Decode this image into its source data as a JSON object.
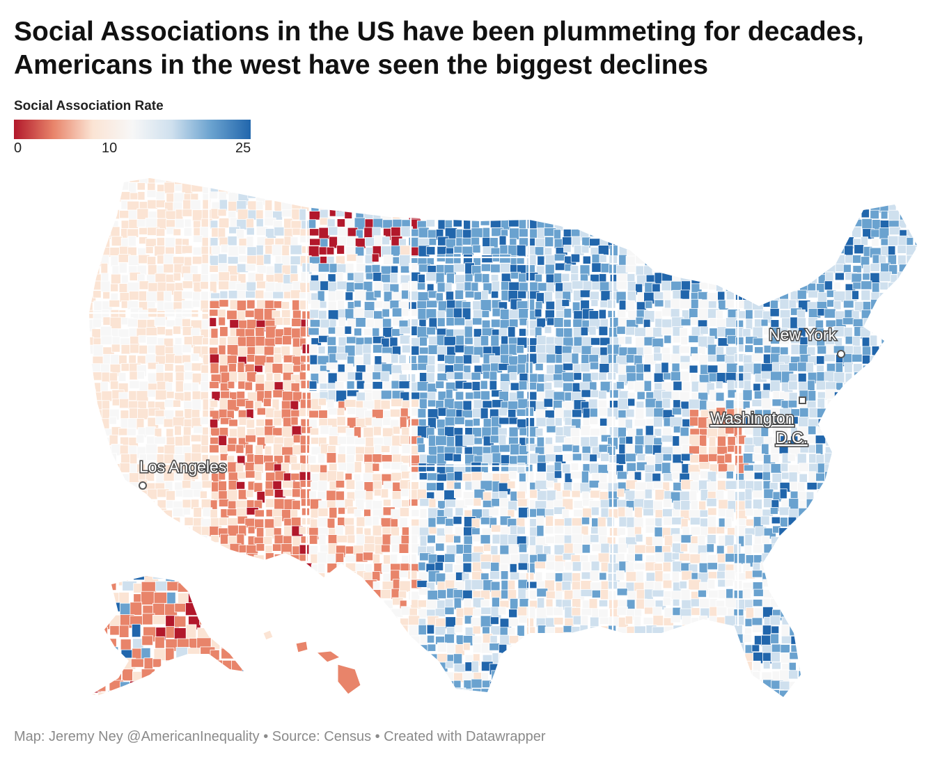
{
  "title_line1": "Social Associations in the US have been plummeting for decades,",
  "title_line2": "Americans in the west have seen the biggest declines",
  "legend": {
    "title": "Social Association Rate",
    "ticks": [
      "0",
      "10",
      "25"
    ],
    "min": 0,
    "mid": 10,
    "max": 25,
    "colors": [
      "#b2182b",
      "#e8846a",
      "#fbe4d4",
      "#f7f7f7",
      "#cfe0ee",
      "#6aa2cf",
      "#2166ac"
    ]
  },
  "cities": {
    "new_york": "New York",
    "washington_line1": "Washington",
    "washington_line2": "D.C.",
    "los_angeles": "Los Angeles"
  },
  "footer": "Map: Jeremy Ney @AmericanInequality • Source: Census • Created with Datawrapper"
}
